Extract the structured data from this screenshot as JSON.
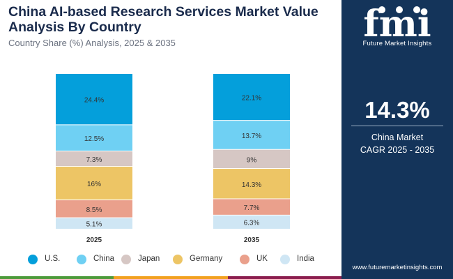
{
  "colors": {
    "panel_bg": "#14345a",
    "title": "#1a2b4c",
    "bottom_bar": [
      "#4c9b3a",
      "#f2a11f",
      "#8b1d4e"
    ]
  },
  "panel": {
    "logo_word": "fmi",
    "logo_caption": "Future Market Insights",
    "value": "14.3%",
    "label_line1": "China Market",
    "label_line2": "CAGR 2025 - 2035",
    "url": "www.futuremarketinsights.com"
  },
  "chart_data": {
    "type": "bar",
    "stacked": true,
    "title": "China AI-based Research Services Market Value Analysis By Country",
    "subtitle": "Country Share (%) Analysis, 2025 & 2035",
    "categories": [
      "2025",
      "2035"
    ],
    "series": [
      {
        "name": "U.S.",
        "color": "#049fdb",
        "values": [
          24.4,
          22.1
        ],
        "labels": [
          "24.4%",
          "22.1%"
        ]
      },
      {
        "name": "China",
        "color": "#6fd0f3",
        "values": [
          12.5,
          13.7
        ],
        "labels": [
          "12.5%",
          "13.7%"
        ]
      },
      {
        "name": "Japan",
        "color": "#d6c7c4",
        "values": [
          7.3,
          9
        ],
        "labels": [
          "7.3%",
          "9%"
        ]
      },
      {
        "name": "Germany",
        "color": "#edc565",
        "values": [
          16,
          14.3
        ],
        "labels": [
          "16%",
          "14.3%"
        ]
      },
      {
        "name": "UK",
        "color": "#eaa08c",
        "values": [
          8.5,
          7.7
        ],
        "labels": [
          "8.5%",
          "7.7%"
        ]
      },
      {
        "name": "India",
        "color": "#cfe6f4",
        "values": [
          5.1,
          6.3
        ],
        "labels": [
          "5.1%",
          "6.3%"
        ]
      }
    ],
    "legend_position": "bottom",
    "grid": false
  }
}
